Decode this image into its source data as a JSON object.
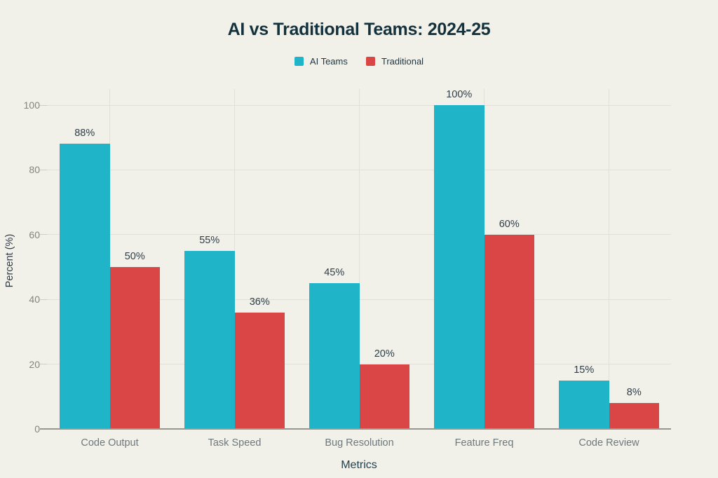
{
  "colors": {
    "background": "#f1f0e9",
    "ai_teams": "#20b4c8",
    "traditional": "#da4545",
    "grid": "#e1dfd6",
    "axis": "#97968f",
    "title_text": "#13323d"
  },
  "legend": {
    "items": [
      {
        "label": "AI Teams",
        "color": "#20b4c8"
      },
      {
        "label": "Traditional",
        "color": "#da4545"
      }
    ]
  },
  "chart_data": {
    "type": "bar",
    "title": "AI vs Traditional Teams: 2024-25",
    "categories": [
      "Code Output",
      "Task Speed",
      "Bug Resolution",
      "Feature Freq",
      "Code Review"
    ],
    "series": [
      {
        "name": "AI Teams",
        "color": "#20b4c8",
        "values": [
          88,
          55,
          45,
          100,
          15
        ],
        "labels": [
          "88%",
          "55%",
          "45%",
          "100%",
          "15%"
        ]
      },
      {
        "name": "Traditional",
        "color": "#da4545",
        "values": [
          50,
          36,
          20,
          60,
          8
        ],
        "labels": [
          "50%",
          "36%",
          "20%",
          "60%",
          "8%"
        ]
      }
    ],
    "xlabel": "Metrics",
    "ylabel": "Percent (%)",
    "ylim": [
      0,
      100
    ],
    "yticks": [
      0,
      20,
      40,
      60,
      80,
      100
    ],
    "grid": true,
    "legend_position": "top"
  }
}
